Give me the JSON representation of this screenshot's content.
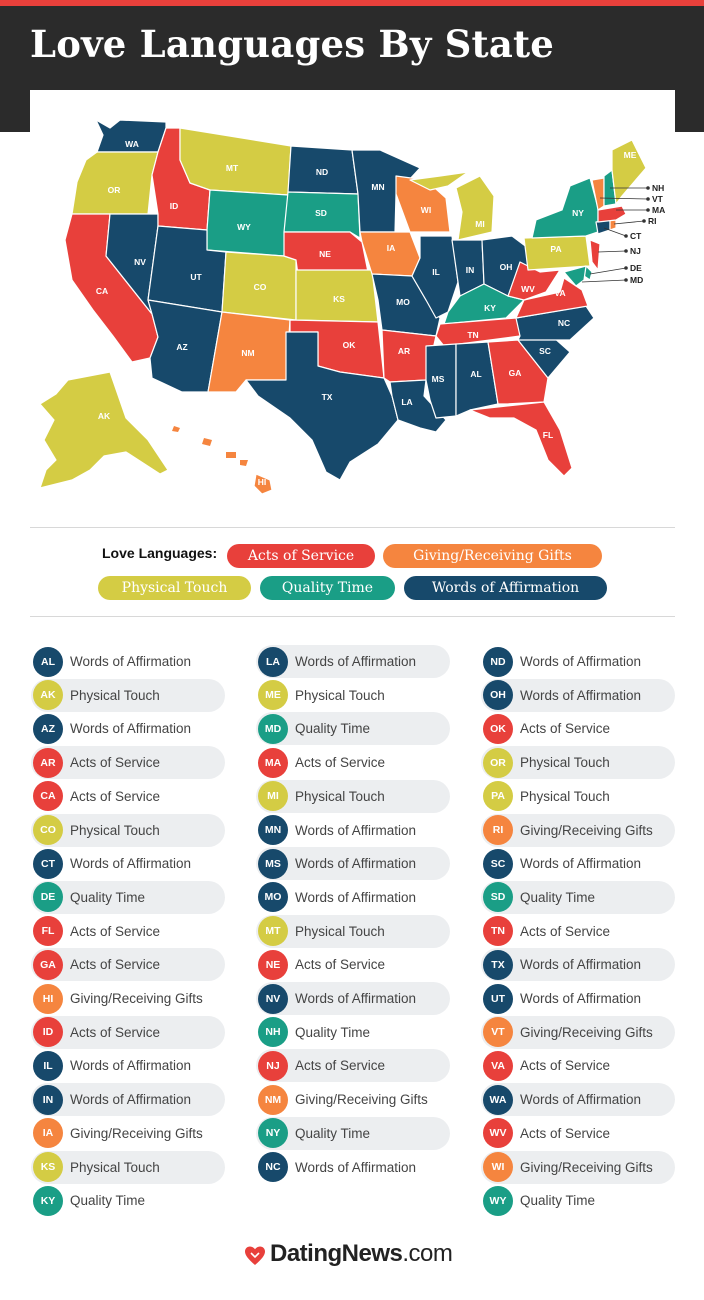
{
  "title": "Love Languages By State",
  "colors": {
    "acts": "#e8403b",
    "gifts": "#f5853f",
    "touch": "#d4cc44",
    "time": "#1a9e86",
    "words": "#17496b",
    "header_bg": "#2b2b2b"
  },
  "legend": {
    "title": "Love Languages:",
    "items": [
      {
        "key": "acts",
        "label": "Acts of Service"
      },
      {
        "key": "gifts",
        "label": "Giving/Receiving Gifts"
      },
      {
        "key": "touch",
        "label": "Physical Touch"
      },
      {
        "key": "time",
        "label": "Quality Time"
      },
      {
        "key": "words",
        "label": "Words of Affirmation"
      }
    ]
  },
  "map": {
    "state_labels": [
      "WA",
      "OR",
      "CA",
      "ID",
      "NV",
      "MT",
      "WY",
      "UT",
      "AZ",
      "CO",
      "NM",
      "ND",
      "SD",
      "NE",
      "KS",
      "OK",
      "TX",
      "MN",
      "IA",
      "MO",
      "AR",
      "LA",
      "WI",
      "IL",
      "MI",
      "IN",
      "OH",
      "KY",
      "TN",
      "MS",
      "AL",
      "GA",
      "FL",
      "SC",
      "NC",
      "VA",
      "WV",
      "PA",
      "NY",
      "ME",
      "AK",
      "HI"
    ],
    "callouts": [
      "NH",
      "VT",
      "MA",
      "RI",
      "CT",
      "NJ",
      "DE",
      "MD"
    ]
  },
  "states": {
    "col1": [
      {
        "abbr": "AL",
        "language": "Words of Affirmation",
        "key": "words"
      },
      {
        "abbr": "AK",
        "language": "Physical Touch",
        "key": "touch"
      },
      {
        "abbr": "AZ",
        "language": "Words of Affirmation",
        "key": "words"
      },
      {
        "abbr": "AR",
        "language": "Acts of Service",
        "key": "acts"
      },
      {
        "abbr": "CA",
        "language": "Acts of Service",
        "key": "acts"
      },
      {
        "abbr": "CO",
        "language": "Physical Touch",
        "key": "touch"
      },
      {
        "abbr": "CT",
        "language": "Words of Affirmation",
        "key": "words"
      },
      {
        "abbr": "DE",
        "language": "Quality Time",
        "key": "time"
      },
      {
        "abbr": "FL",
        "language": "Acts of Service",
        "key": "acts"
      },
      {
        "abbr": "GA",
        "language": "Acts of Service",
        "key": "acts"
      },
      {
        "abbr": "HI",
        "language": "Giving/Receiving Gifts",
        "key": "gifts"
      },
      {
        "abbr": "ID",
        "language": "Acts of Service",
        "key": "acts"
      },
      {
        "abbr": "IL",
        "language": "Words of Affirmation",
        "key": "words"
      },
      {
        "abbr": "IN",
        "language": "Words of Affirmation",
        "key": "words"
      },
      {
        "abbr": "IA",
        "language": "Giving/Receiving Gifts",
        "key": "gifts"
      },
      {
        "abbr": "KS",
        "language": "Physical Touch",
        "key": "touch"
      },
      {
        "abbr": "KY",
        "language": "Quality Time",
        "key": "time"
      }
    ],
    "col2": [
      {
        "abbr": "LA",
        "language": "Words of Affirmation",
        "key": "words"
      },
      {
        "abbr": "ME",
        "language": "Physical Touch",
        "key": "touch"
      },
      {
        "abbr": "MD",
        "language": "Quality Time",
        "key": "time"
      },
      {
        "abbr": "MA",
        "language": "Acts of Service",
        "key": "acts"
      },
      {
        "abbr": "MI",
        "language": "Physical Touch",
        "key": "touch"
      },
      {
        "abbr": "MN",
        "language": "Words of Affirmation",
        "key": "words"
      },
      {
        "abbr": "MS",
        "language": "Words of Affirmation",
        "key": "words"
      },
      {
        "abbr": "MO",
        "language": "Words of Affirmation",
        "key": "words"
      },
      {
        "abbr": "MT",
        "language": "Physical Touch",
        "key": "touch"
      },
      {
        "abbr": "NE",
        "language": "Acts of Service",
        "key": "acts"
      },
      {
        "abbr": "NV",
        "language": "Words of Affirmation",
        "key": "words"
      },
      {
        "abbr": "NH",
        "language": "Quality Time",
        "key": "time"
      },
      {
        "abbr": "NJ",
        "language": "Acts of Service",
        "key": "acts"
      },
      {
        "abbr": "NM",
        "language": "Giving/Receiving Gifts",
        "key": "gifts"
      },
      {
        "abbr": "NY",
        "language": "Quality Time",
        "key": "time"
      },
      {
        "abbr": "NC",
        "language": "Words of Affirmation",
        "key": "words"
      }
    ],
    "col3": [
      {
        "abbr": "ND",
        "language": "Words of Affirmation",
        "key": "words"
      },
      {
        "abbr": "OH",
        "language": "Words of Affirmation",
        "key": "words"
      },
      {
        "abbr": "OK",
        "language": "Acts of Service",
        "key": "acts"
      },
      {
        "abbr": "OR",
        "language": "Physical Touch",
        "key": "touch"
      },
      {
        "abbr": "PA",
        "language": "Physical Touch",
        "key": "touch"
      },
      {
        "abbr": "RI",
        "language": "Giving/Receiving Gifts",
        "key": "gifts"
      },
      {
        "abbr": "SC",
        "language": "Words of Affirmation",
        "key": "words"
      },
      {
        "abbr": "SD",
        "language": "Quality Time",
        "key": "time"
      },
      {
        "abbr": "TN",
        "language": "Acts of Service",
        "key": "acts"
      },
      {
        "abbr": "TX",
        "language": "Words of Affirmation",
        "key": "words"
      },
      {
        "abbr": "UT",
        "language": "Words of Affirmation",
        "key": "words"
      },
      {
        "abbr": "VT",
        "language": "Giving/Receiving Gifts",
        "key": "gifts"
      },
      {
        "abbr": "VA",
        "language": "Acts of Service",
        "key": "acts"
      },
      {
        "abbr": "WA",
        "language": "Words of Affirmation",
        "key": "words"
      },
      {
        "abbr": "WV",
        "language": "Acts of Service",
        "key": "acts"
      },
      {
        "abbr": "WI",
        "language": "Giving/Receiving Gifts",
        "key": "gifts"
      },
      {
        "abbr": "WY",
        "language": "Quality Time",
        "key": "time"
      }
    ]
  },
  "footer": {
    "brand": "DatingNews",
    "suffix": ".com",
    "icon": "heart-icon"
  }
}
